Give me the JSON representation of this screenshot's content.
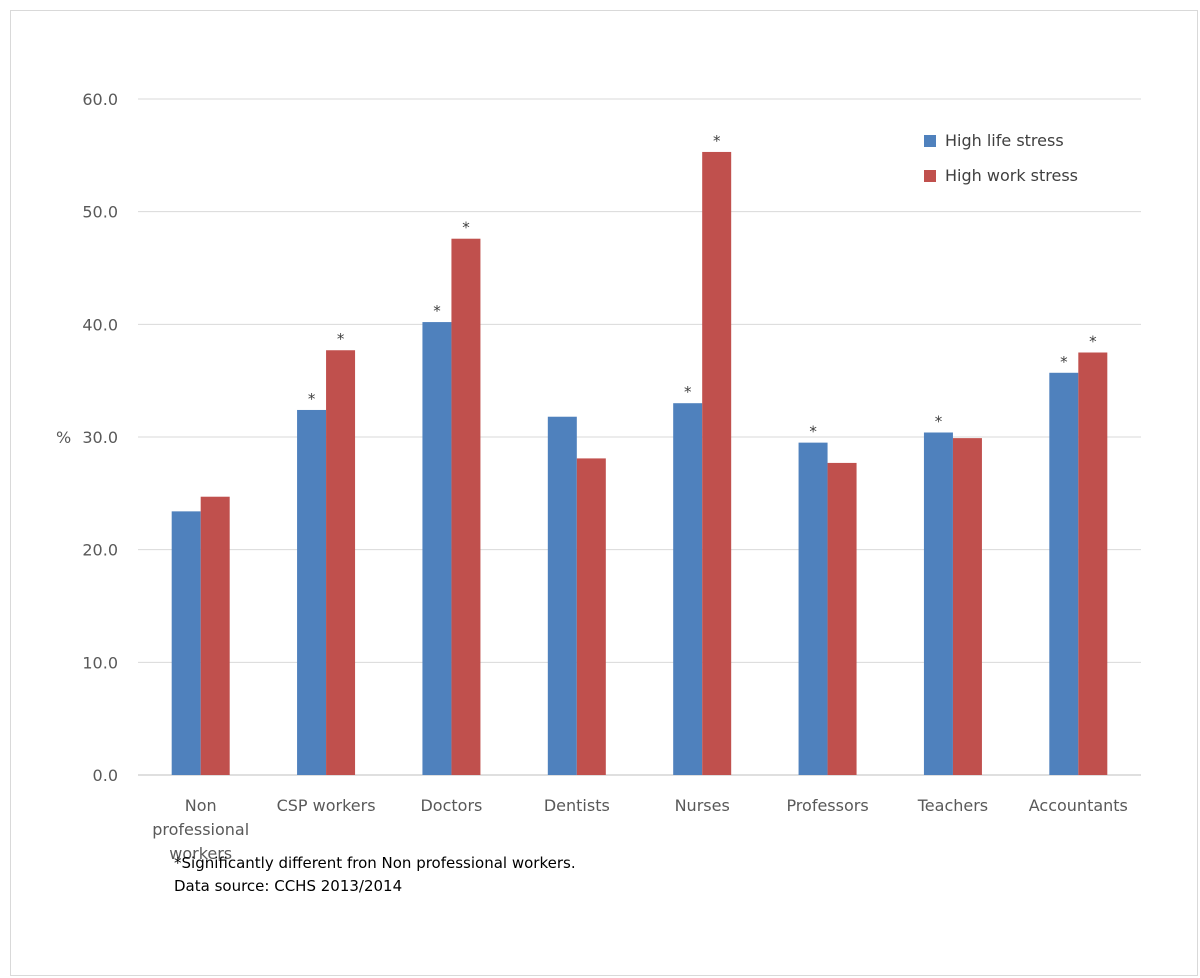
{
  "chart_data": {
    "type": "bar",
    "ylabel": "%",
    "ylim": [
      0,
      60
    ],
    "yticks": [
      "0.0",
      "10.0",
      "20.0",
      "30.0",
      "40.0",
      "50.0",
      "60.0"
    ],
    "grid": true,
    "legend_position": "top-right",
    "categories": [
      [
        "Non",
        "professional",
        "workers"
      ],
      [
        "CSP workers"
      ],
      [
        "Doctors"
      ],
      [
        "Dentists"
      ],
      [
        "Nurses"
      ],
      [
        "Professors"
      ],
      [
        "Teachers"
      ],
      [
        "Accountants"
      ]
    ],
    "series": [
      {
        "name": "High life stress",
        "color": "#4f81bd",
        "values": [
          23.4,
          32.4,
          40.2,
          31.8,
          33.0,
          29.5,
          30.4,
          35.7
        ],
        "significant": [
          false,
          true,
          true,
          false,
          true,
          true,
          true,
          true
        ]
      },
      {
        "name": "High work stress",
        "color": "#c0504d",
        "values": [
          24.7,
          37.7,
          47.6,
          28.1,
          55.3,
          27.7,
          29.9,
          37.5
        ],
        "significant": [
          false,
          true,
          true,
          false,
          true,
          false,
          false,
          true
        ]
      }
    ],
    "significance_marker": "*"
  },
  "notes": {
    "footnote": "*Significantly different fron Non professional workers.",
    "source": "Data source: CCHS 2013/2014"
  }
}
